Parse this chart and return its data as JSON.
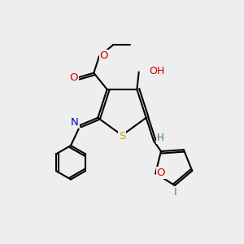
{
  "bg_color": "#eeeeee",
  "atom_colors": {
    "C": "#000000",
    "O": "#cc0000",
    "N": "#0000cc",
    "S": "#bbaa00",
    "I": "#bb44bb",
    "H": "#337777"
  }
}
